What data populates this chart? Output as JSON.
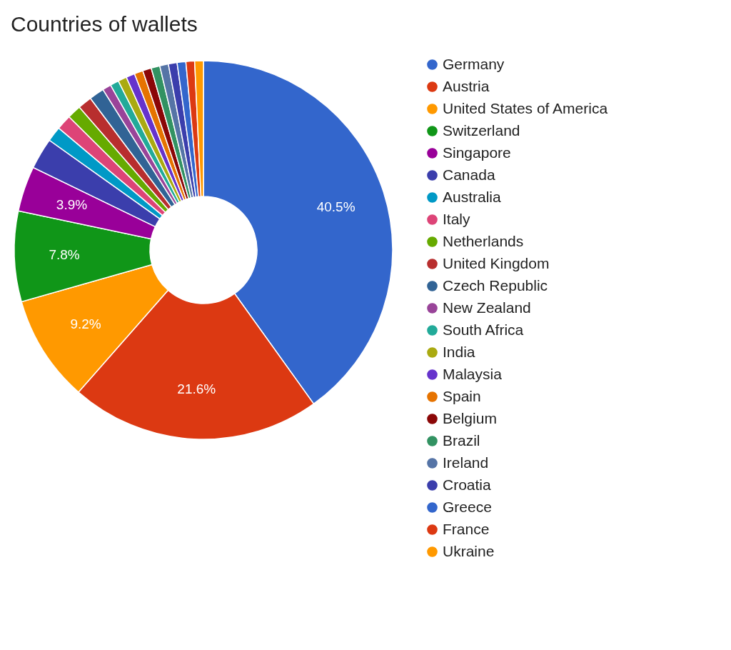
{
  "chart_data": {
    "type": "donut",
    "title": "Countries of wallets",
    "categories": [
      "Germany",
      "Austria",
      "United States of America",
      "Switzerland",
      "Singapore",
      "Canada",
      "Australia",
      "Italy",
      "Netherlands",
      "United Kingdom",
      "Czech Republic",
      "New Zealand",
      "South Africa",
      "India",
      "Malaysia",
      "Spain",
      "Belgium",
      "Brazil",
      "Ireland",
      "Croatia",
      "Greece",
      "France",
      "Ukraine"
    ],
    "values": [
      40.5,
      21.6,
      9.2,
      7.8,
      3.9,
      2.7,
      1.3,
      1.3,
      1.2,
      1.2,
      1.3,
      0.75,
      0.75,
      0.75,
      0.75,
      0.75,
      0.75,
      0.75,
      0.75,
      0.75,
      0.75,
      0.75,
      0.75
    ],
    "value_labels": [
      "40.5%",
      "21.6%",
      "9.2%",
      "7.8%",
      "3.9%",
      null,
      null,
      null,
      null,
      null,
      null,
      null,
      null,
      null,
      null,
      null,
      null,
      null,
      null,
      null,
      null,
      null,
      null
    ],
    "colors": [
      "#3366cc",
      "#dc3912",
      "#ff9900",
      "#109618",
      "#990099",
      "#3b3eac",
      "#0099c6",
      "#dd4477",
      "#66aa00",
      "#b82e2e",
      "#316395",
      "#994499",
      "#22aa99",
      "#aaaa11",
      "#6633cc",
      "#e67300",
      "#8b0707",
      "#329262",
      "#5574a6",
      "#3b3eac",
      "#3366cc",
      "#dc3912",
      "#ff9900"
    ],
    "legend": "right"
  }
}
